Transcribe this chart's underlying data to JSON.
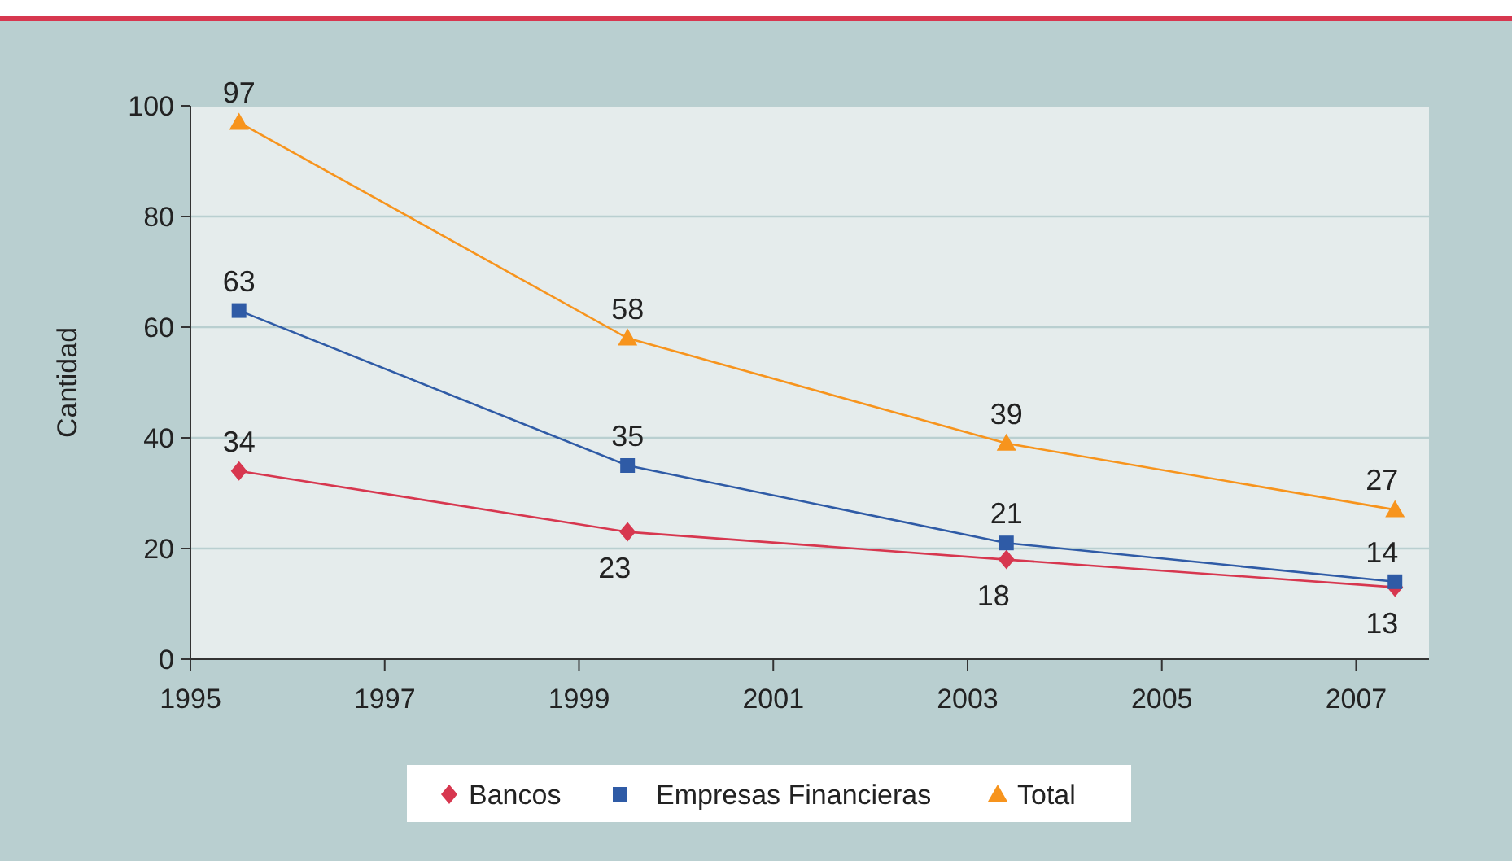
{
  "chart_data": {
    "type": "line",
    "ylabel": "Cantidad",
    "x": [
      1995.5,
      1999.5,
      2003.4,
      2007.4
    ],
    "series": [
      {
        "name": "Bancos",
        "color": "#d7374f",
        "marker": "diamond",
        "values": [
          34,
          23,
          18,
          13
        ]
      },
      {
        "name": "Empresas Financieras",
        "color": "#2f5ba6",
        "marker": "square",
        "values": [
          63,
          35,
          21,
          14
        ]
      },
      {
        "name": "Total",
        "color": "#f7941d",
        "marker": "triangle",
        "values": [
          97,
          58,
          39,
          27
        ]
      }
    ],
    "xlim": [
      1995,
      2007.75
    ],
    "xticks": [
      1995,
      1997,
      1999,
      2001,
      2003,
      2005,
      2007
    ],
    "ylim": [
      0,
      100
    ],
    "yticks": [
      0,
      20,
      40,
      60,
      80,
      100
    ],
    "grid": "y",
    "legend": "bottom",
    "data_labels": true,
    "line_style": "solid"
  }
}
